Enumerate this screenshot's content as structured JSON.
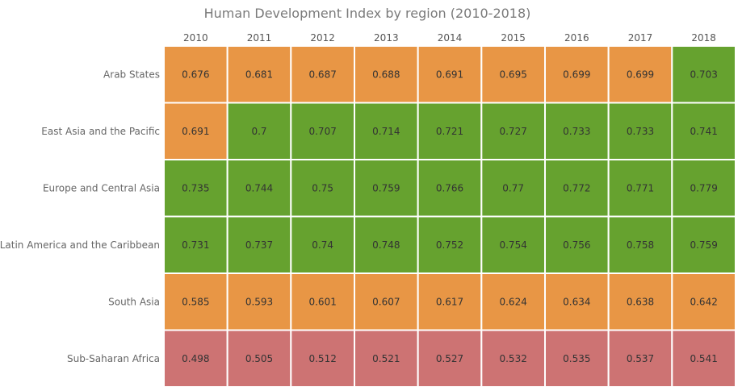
{
  "chart_data": {
    "type": "heatmap",
    "title": "Human Development Index by region (2010-2018)",
    "x": [
      "2010",
      "2011",
      "2012",
      "2013",
      "2014",
      "2015",
      "2016",
      "2017",
      "2018"
    ],
    "y": [
      "Arab States",
      "East Asia and the Pacific",
      "Europe and Central Asia",
      "Latin America and the Caribbean",
      "South Asia",
      "Sub-Saharan Africa"
    ],
    "values": [
      [
        0.676,
        0.681,
        0.687,
        0.688,
        0.691,
        0.695,
        0.699,
        0.699,
        0.703
      ],
      [
        0.691,
        0.7,
        0.707,
        0.714,
        0.721,
        0.727,
        0.733,
        0.733,
        0.741
      ],
      [
        0.735,
        0.744,
        0.75,
        0.759,
        0.766,
        0.77,
        0.772,
        0.771,
        0.779
      ],
      [
        0.731,
        0.737,
        0.74,
        0.748,
        0.752,
        0.754,
        0.756,
        0.758,
        0.759
      ],
      [
        0.585,
        0.593,
        0.601,
        0.607,
        0.617,
        0.624,
        0.634,
        0.638,
        0.642
      ],
      [
        0.498,
        0.505,
        0.512,
        0.521,
        0.527,
        0.532,
        0.535,
        0.537,
        0.541
      ]
    ],
    "color_scale": [
      {
        "max": 0.55,
        "color": "#cd7373"
      },
      {
        "max": 0.7,
        "color": "#e89645"
      },
      {
        "max": 1.0,
        "color": "#66a22f"
      }
    ],
    "x_axis_position": "top",
    "legend": "none"
  }
}
